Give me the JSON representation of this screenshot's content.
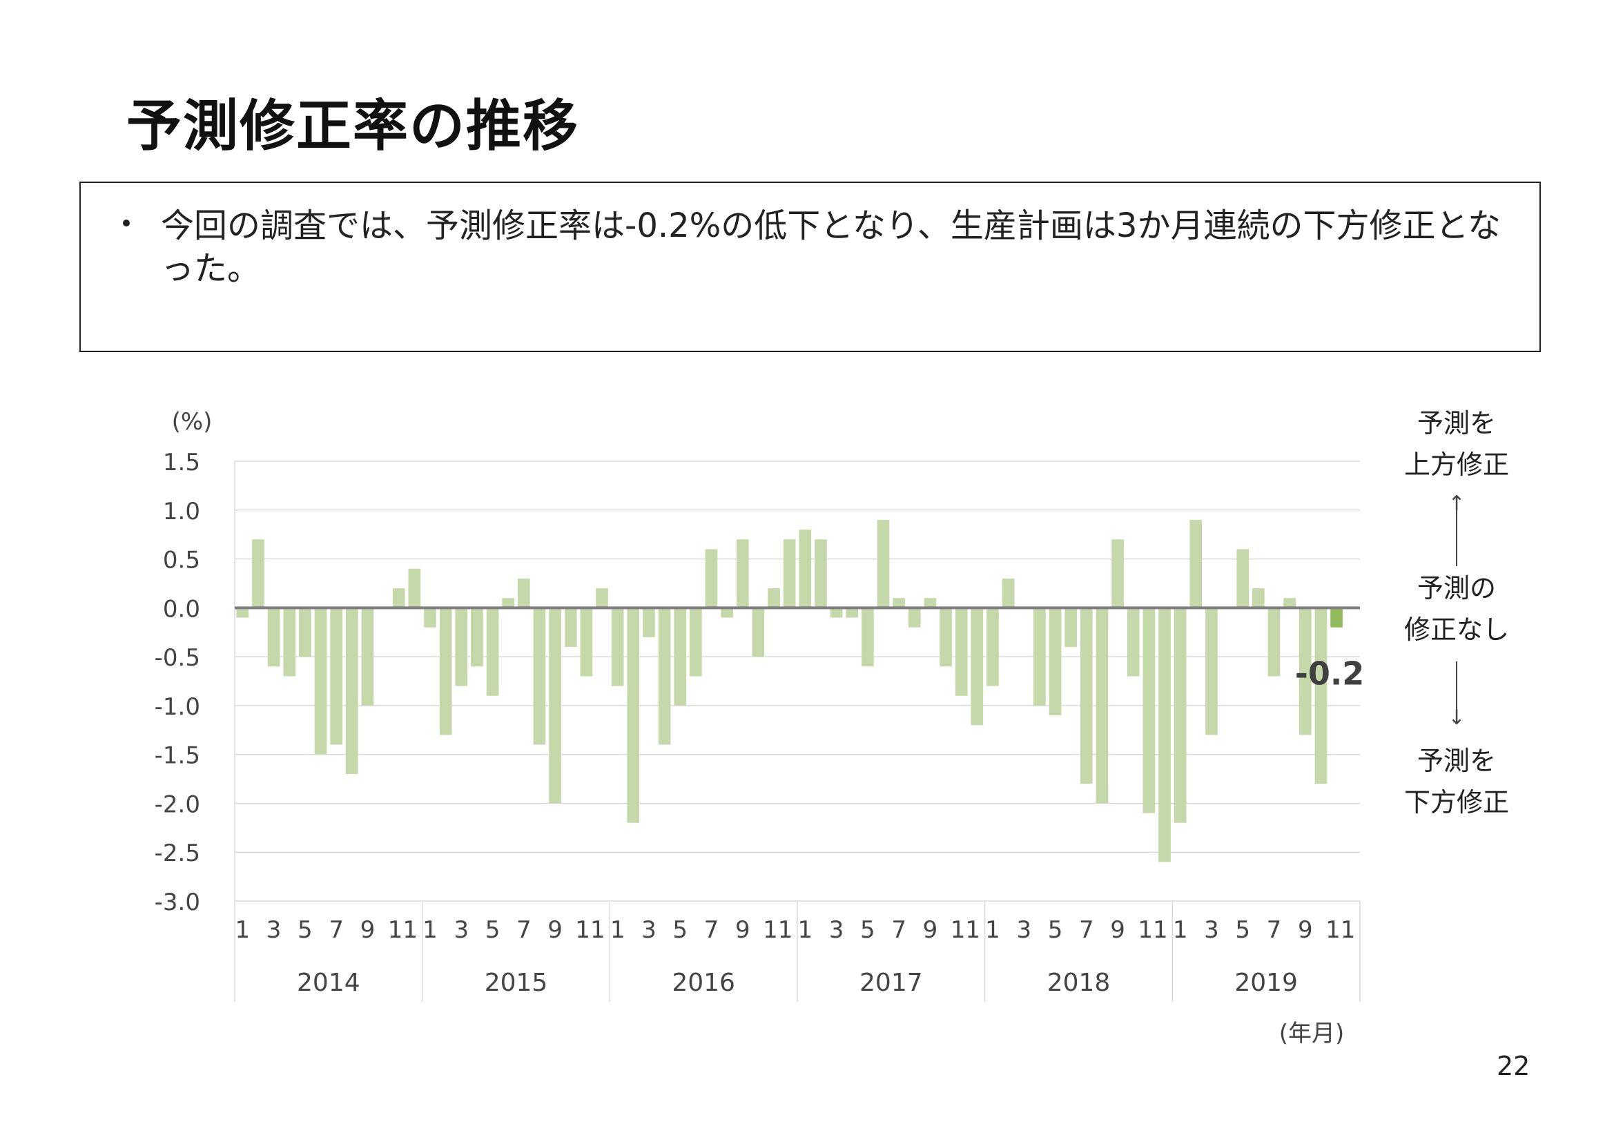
{
  "title": "予測修正率の推移",
  "summary": "今回の調査では、予測修正率は-0.2%の低下となり、生産計画は3か月連続の下方修正となった。",
  "page_number": "22",
  "side_labels": {
    "upper": "予測を\n上方修正",
    "middle": "予測の\n修正なし",
    "lower": "予測を\n下方修正"
  },
  "chart_data": {
    "type": "bar",
    "ylabel": "(%)",
    "xlabel": "(年月)",
    "ylim": [
      -3.0,
      1.5
    ],
    "yticks": [
      "1.5",
      "1.0",
      "0.5",
      "0.0",
      "-0.5",
      "-1.0",
      "-1.5",
      "-2.0",
      "-2.5",
      "-3.0"
    ],
    "grid": true,
    "years": [
      "2014",
      "2015",
      "2016",
      "2017",
      "2018",
      "2019"
    ],
    "month_tick_labels": [
      "1",
      "3",
      "5",
      "7",
      "9",
      "11"
    ],
    "bar_color": "#c5d8a9",
    "highlight_color": "#92bb5c",
    "zero_line_color": "#7f7f7f",
    "highlight_label": "-0.2",
    "values": [
      -0.1,
      0.7,
      -0.6,
      -0.7,
      -0.5,
      -1.5,
      -1.4,
      -1.7,
      -1.0,
      0.0,
      0.2,
      0.4,
      -0.2,
      -1.3,
      -0.8,
      -0.6,
      -0.9,
      0.1,
      0.3,
      -1.4,
      -2.0,
      -0.4,
      -0.7,
      0.2,
      -0.8,
      -2.2,
      -0.3,
      -1.4,
      -1.0,
      -0.7,
      0.6,
      -0.1,
      0.7,
      -0.5,
      0.2,
      0.7,
      0.8,
      0.7,
      -0.1,
      -0.1,
      -0.6,
      0.9,
      0.1,
      -0.2,
      0.1,
      -0.6,
      -0.9,
      -1.2,
      -0.8,
      0.3,
      0.0,
      -1.0,
      -1.1,
      -0.4,
      -1.8,
      -2.0,
      0.7,
      -0.7,
      -2.1,
      -2.6,
      -2.2,
      0.9,
      -1.3,
      0.0,
      0.6,
      0.2,
      -0.7,
      0.1,
      -1.3,
      -1.8,
      -0.2
    ]
  }
}
